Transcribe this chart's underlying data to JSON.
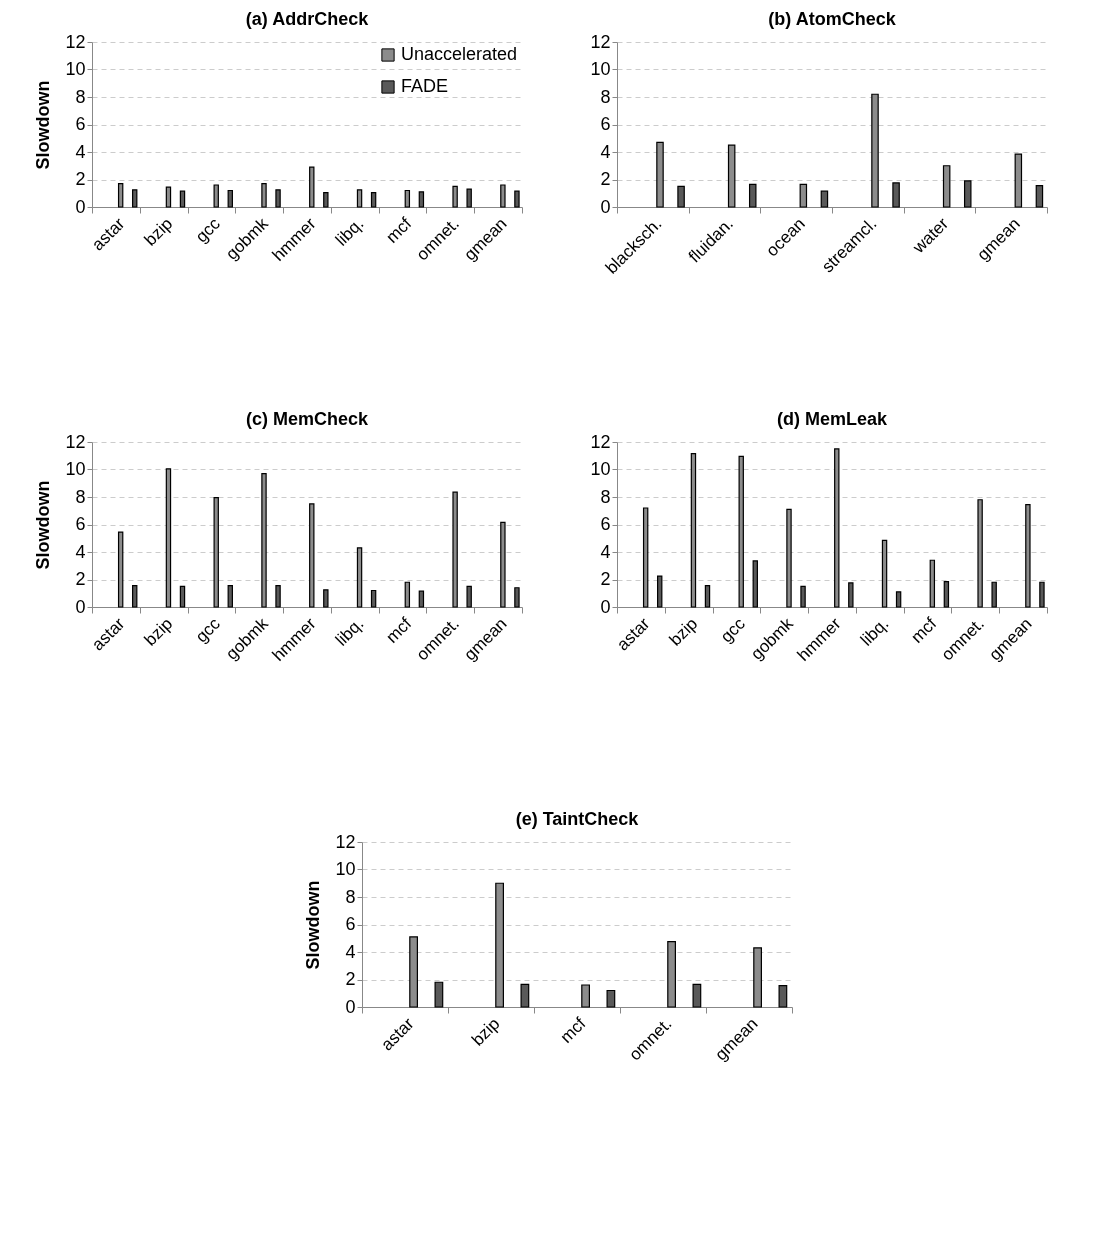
{
  "chart_data": [
    {
      "type": "bar",
      "title": "(a) AddrCheck",
      "ylabel": "Slowdown",
      "categories": [
        "astar",
        "bzip",
        "gcc",
        "gobmk",
        "hmmer",
        "libq.",
        "mcf",
        "omnet.",
        "gmean"
      ],
      "series": [
        {
          "name": "Unaccelerated",
          "color": "#8c8c8c",
          "values": [
            1.7,
            1.45,
            1.6,
            1.7,
            2.9,
            1.25,
            1.2,
            1.5,
            1.6
          ]
        },
        {
          "name": "FADE",
          "color": "#595959",
          "values": [
            1.25,
            1.15,
            1.2,
            1.25,
            1.05,
            1.05,
            1.1,
            1.3,
            1.15
          ]
        }
      ],
      "ylim": [
        0,
        12
      ],
      "yticks": [
        0,
        2,
        4,
        6,
        8,
        10,
        12
      ],
      "grid": "y",
      "legend": "top right"
    },
    {
      "type": "bar",
      "title": "(b) AtomCheck",
      "categories": [
        "blacksch.",
        "fluidan.",
        "ocean",
        "streamcl.",
        "water",
        "gmean"
      ],
      "series": [
        {
          "color": "#8c8c8c",
          "values": [
            4.7,
            4.5,
            1.65,
            8.2,
            3.0,
            3.85
          ]
        },
        {
          "color": "#595959",
          "values": [
            1.5,
            1.65,
            1.15,
            1.75,
            1.9,
            1.55
          ]
        }
      ],
      "ylim": [
        0,
        12
      ],
      "yticks": [
        0,
        2,
        4,
        6,
        8,
        10,
        12
      ],
      "grid": "y"
    },
    {
      "type": "bar",
      "title": "(c) MemCheck",
      "ylabel": "Slowdown",
      "categories": [
        "astar",
        "bzip",
        "gcc",
        "gobmk",
        "hmmer",
        "libq.",
        "mcf",
        "omnet.",
        "gmean"
      ],
      "series": [
        {
          "color": "#8c8c8c",
          "values": [
            5.45,
            10.05,
            7.95,
            9.7,
            7.5,
            4.3,
            1.8,
            8.35,
            6.15
          ]
        },
        {
          "color": "#595959",
          "values": [
            1.55,
            1.5,
            1.55,
            1.55,
            1.25,
            1.2,
            1.15,
            1.5,
            1.4
          ]
        }
      ],
      "ylim": [
        0,
        12
      ],
      "yticks": [
        0,
        2,
        4,
        6,
        8,
        10,
        12
      ],
      "grid": "y"
    },
    {
      "type": "bar",
      "title": "(d) MemLeak",
      "categories": [
        "astar",
        "bzip",
        "gcc",
        "gobmk",
        "hmmer",
        "libq.",
        "mcf",
        "omnet.",
        "gmean"
      ],
      "series": [
        {
          "color": "#8c8c8c",
          "values": [
            7.2,
            11.15,
            10.95,
            7.1,
            11.5,
            4.85,
            3.4,
            7.8,
            7.45
          ]
        },
        {
          "color": "#595959",
          "values": [
            2.25,
            1.55,
            3.35,
            1.5,
            1.75,
            1.1,
            1.85,
            1.8,
            1.8
          ]
        }
      ],
      "ylim": [
        0,
        12
      ],
      "yticks": [
        0,
        2,
        4,
        6,
        8,
        10,
        12
      ],
      "grid": "y"
    },
    {
      "type": "bar",
      "title": "(e) TaintCheck",
      "ylabel": "Slowdown",
      "categories": [
        "astar",
        "bzip",
        "mcf",
        "omnet.",
        "gmean"
      ],
      "series": [
        {
          "color": "#8c8c8c",
          "values": [
            5.1,
            9.0,
            1.6,
            4.75,
            4.3
          ]
        },
        {
          "color": "#595959",
          "values": [
            1.8,
            1.65,
            1.2,
            1.65,
            1.55
          ]
        }
      ],
      "ylim": [
        0,
        12
      ],
      "yticks": [
        0,
        2,
        4,
        6,
        8,
        10,
        12
      ],
      "grid": "y"
    }
  ]
}
